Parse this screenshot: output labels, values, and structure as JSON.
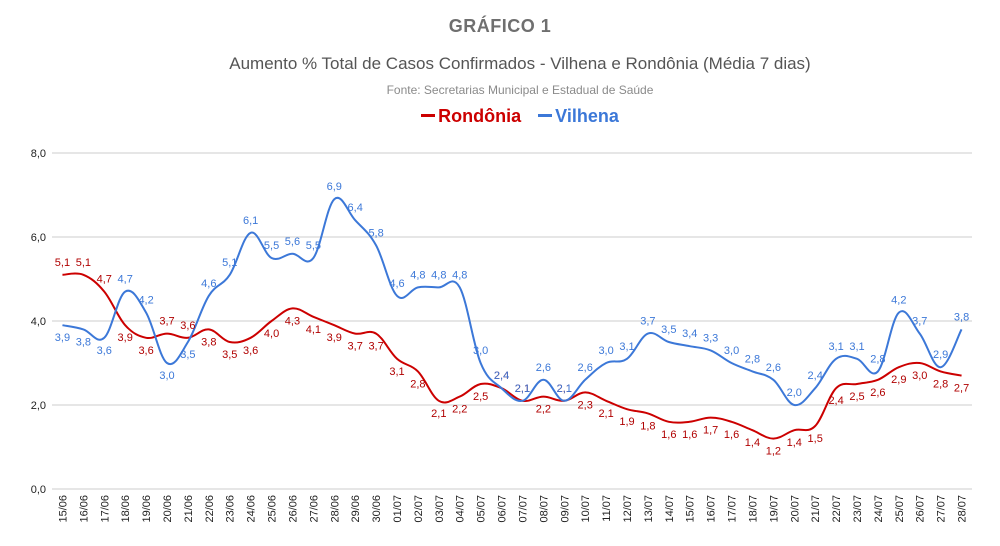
{
  "chart_data": {
    "type": "line",
    "title": "GRÁFICO 1",
    "subtitle": "Aumento % Total de Casos Confirmados - Vilhena e Rondônia (Média 7 dias)",
    "source": "Fonte: Secretarias Municipal e Estadual de Saúde",
    "legend_position": "top-center",
    "grid": true,
    "ylim": [
      0,
      8
    ],
    "yticks": [
      "0,0",
      "2,0",
      "4,0",
      "6,0",
      "8,0"
    ],
    "ytick_values": [
      0,
      2,
      4,
      6,
      8
    ],
    "categories": [
      "15/06",
      "16/06",
      "17/06",
      "18/06",
      "19/06",
      "20/06",
      "21/06",
      "22/06",
      "23/06",
      "24/06",
      "25/06",
      "26/06",
      "27/06",
      "28/06",
      "29/06",
      "30/06",
      "01/07",
      "02/07",
      "03/07",
      "04/07",
      "05/07",
      "06/07",
      "07/07",
      "08/07",
      "09/07",
      "10/07",
      "11/07",
      "12/07",
      "13/07",
      "14/07",
      "15/07",
      "16/07",
      "17/07",
      "18/07",
      "19/07",
      "20/07",
      "21/07",
      "22/07",
      "23/07",
      "24/07",
      "25/07",
      "26/07",
      "27/07",
      "28/07"
    ],
    "series": [
      {
        "name": "Rondônia",
        "color": "#cc0000",
        "values": [
          5.1,
          5.1,
          4.7,
          3.9,
          3.6,
          3.7,
          3.6,
          3.8,
          3.5,
          3.6,
          4.0,
          4.3,
          4.1,
          3.9,
          3.7,
          3.7,
          3.1,
          2.8,
          2.1,
          2.2,
          2.5,
          2.4,
          2.1,
          2.2,
          2.1,
          2.3,
          2.1,
          1.9,
          1.8,
          1.6,
          1.6,
          1.7,
          1.6,
          1.4,
          1.2,
          1.4,
          1.5,
          2.4,
          2.5,
          2.6,
          2.9,
          3.0,
          2.8,
          2.7
        ],
        "labels": [
          "5,1",
          "5,1",
          "4,7",
          "3,9",
          "3,6",
          "3,7",
          "3,6",
          "3,8",
          "3,5",
          "3,6",
          "4,0",
          "4,3",
          "4,1",
          "3,9",
          "3,7",
          "3,7",
          "3,1",
          "2,8",
          "2,1",
          "2,2",
          "2,5",
          "2,4",
          "2,1",
          "2,2",
          "2,1",
          "2,3",
          "2,1",
          "1,9",
          "1,8",
          "1,6",
          "1,6",
          "1,7",
          "1,6",
          "1,4",
          "1,2",
          "1,4",
          "1,5",
          "2,4",
          "2,5",
          "2,6",
          "2,9",
          "3,0",
          "2,8",
          "2,7"
        ]
      },
      {
        "name": "Vilhena",
        "color": "#3c78d8",
        "values": [
          3.9,
          3.8,
          3.6,
          4.7,
          4.2,
          3.0,
          3.5,
          4.6,
          5.1,
          6.1,
          5.5,
          5.6,
          5.5,
          6.9,
          6.4,
          5.8,
          4.6,
          4.8,
          4.8,
          4.8,
          3.0,
          2.4,
          2.1,
          2.6,
          2.1,
          2.6,
          3.0,
          3.1,
          3.7,
          3.5,
          3.4,
          3.3,
          3.0,
          2.8,
          2.6,
          2.0,
          2.4,
          3.1,
          3.1,
          2.8,
          4.2,
          3.7,
          2.9,
          3.8
        ],
        "labels": [
          "3,9",
          "3,8",
          "3,6",
          "4,7",
          "4,2",
          "3,0",
          "3,5",
          "4,6",
          "5,1",
          "6,1",
          "5,5",
          "5,6",
          "5,5",
          "6,9",
          "6,4",
          "5,8",
          "4,6",
          "4,8",
          "4,8",
          "4,8",
          "3,0",
          "2,4",
          "2,1",
          "2,6",
          "2,1",
          "2,6",
          "3,0",
          "3,1",
          "3,7",
          "3,5",
          "3,4",
          "3,3",
          "3,0",
          "2,8",
          "2,6",
          "2,0",
          "2,4",
          "3,1",
          "3,1",
          "2,8",
          "4,2",
          "3,7",
          "2,9",
          "3,8"
        ]
      }
    ]
  }
}
